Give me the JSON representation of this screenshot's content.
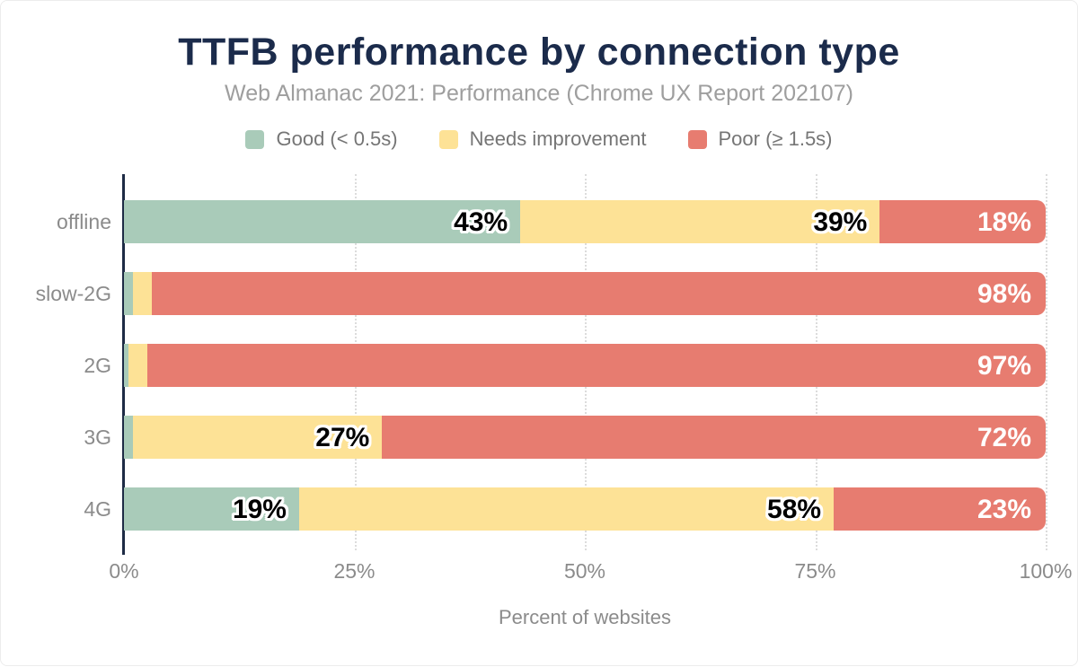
{
  "title": "TTFB performance by connection type",
  "subtitle": "Web Almanac 2021: Performance (Chrome UX Report 202107)",
  "chart_data": {
    "type": "bar",
    "orientation": "horizontal",
    "stacked": true,
    "title": "TTFB performance by connection type",
    "subtitle": "Web Almanac 2021: Performance (Chrome UX Report 202107)",
    "categories": [
      "offline",
      "slow-2G",
      "2G",
      "3G",
      "4G"
    ],
    "series": [
      {
        "name": "Good (< 0.5s)",
        "color": "#a9cbb9",
        "values": [
          43,
          1,
          0,
          1,
          19
        ],
        "labels": [
          "43%",
          "1%",
          "0%",
          "1%",
          "19%"
        ]
      },
      {
        "name": "Needs improvement",
        "color": "#fde296",
        "values": [
          39,
          2,
          2,
          27,
          58
        ],
        "labels": [
          "39%",
          "2%",
          "2%",
          "27%",
          "58%"
        ]
      },
      {
        "name": "Poor (≥ 1.5s)",
        "color": "#e77c70",
        "values": [
          18,
          98,
          97,
          72,
          23
        ],
        "labels": [
          "18%",
          "98%",
          "97%",
          "72%",
          "23%"
        ]
      }
    ],
    "xlabel": "Percent of websites",
    "x_ticks": [
      "0%",
      "25%",
      "50%",
      "75%",
      "100%"
    ],
    "xlim": [
      0,
      100
    ],
    "grid": "dotted vertical gridlines at 25%, 50%, 75%, 100%",
    "legend_position": "top"
  },
  "colors": {
    "title_text": "#1b2b4b",
    "subtitle_text": "#9e9e9e",
    "muted_text": "#8b8b8b",
    "legend_text": "#757575",
    "axis_line": "#1e2b45",
    "gridline": "#dcdcdc",
    "good": "#a9cbb9",
    "needs_improvement": "#fde296",
    "poor": "#e77c70"
  }
}
